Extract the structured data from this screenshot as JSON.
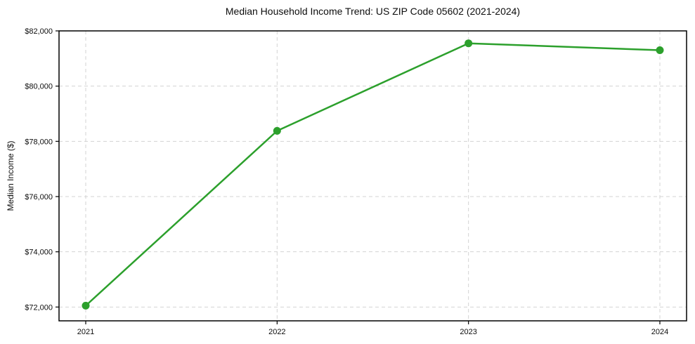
{
  "chart_data": {
    "type": "line",
    "title": "Median Household Income Trend: US ZIP Code 05602 (2021-2024)",
    "categories": [
      "2021",
      "2022",
      "2023",
      "2024"
    ],
    "values": [
      72050,
      78380,
      81550,
      81300
    ],
    "xlabel": "",
    "ylabel": "Median Income ($)",
    "ylim": [
      71500,
      82000
    ],
    "y_ticks": [
      72000,
      74000,
      76000,
      78000,
      80000,
      82000
    ],
    "y_tick_labels": [
      "$72,000",
      "$74,000",
      "$76,000",
      "$78,000",
      "$80,000",
      "$82,000"
    ],
    "grid": true,
    "grid_linestyle": "dashed",
    "grid_color": "#d3d3d3",
    "line_color": "#2ca02c",
    "marker": "circle",
    "marker_color": "#2ca02c",
    "axis_color": "#000000",
    "background_color": "#ffffff",
    "legend_position": "none"
  }
}
